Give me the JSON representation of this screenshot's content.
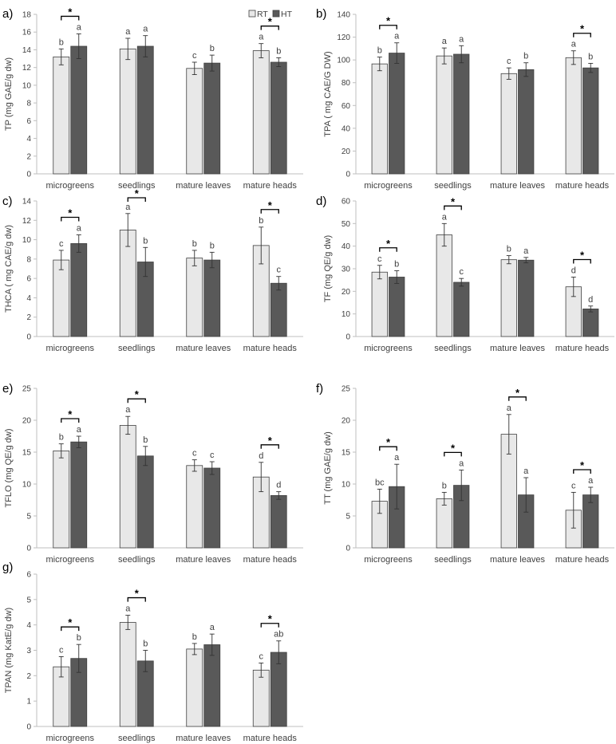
{
  "colors": {
    "RT": "#e8e8e8",
    "HT": "#595959",
    "axis": "#bfbfbf",
    "text": "#404040"
  },
  "legend": {
    "RT": "RT",
    "HT": "HT"
  },
  "chart_data": [
    {
      "type": "bar",
      "panel": "a)",
      "ylabel": "TP (mg GAE/g dw)",
      "ylim": [
        0,
        18
      ],
      "yticks": [
        0,
        2,
        4,
        6,
        8,
        10,
        12,
        14,
        16,
        18
      ],
      "categories": [
        "microgreens",
        "seedlings",
        "mature leaves",
        "mature heads"
      ],
      "series": [
        {
          "name": "RT",
          "values": [
            13.2,
            14.1,
            11.9,
            13.9
          ],
          "errors": [
            0.9,
            1.2,
            0.7,
            0.8
          ],
          "letters": [
            "b",
            "a",
            "c",
            "a"
          ]
        },
        {
          "name": "HT",
          "values": [
            14.4,
            14.4,
            12.5,
            12.6
          ],
          "errors": [
            1.4,
            1.2,
            0.9,
            0.5
          ],
          "letters": [
            "a",
            "a",
            "b",
            "b"
          ]
        }
      ],
      "significance": [
        true,
        false,
        false,
        true
      ]
    },
    {
      "type": "bar",
      "panel": "b)",
      "ylabel": "TPA ( mg CAE/G DW)",
      "ylim": [
        0,
        140
      ],
      "yticks": [
        0,
        20,
        40,
        60,
        80,
        100,
        120,
        140
      ],
      "categories": [
        "microgreens",
        "seedlings",
        "mature leaves",
        "mature heads"
      ],
      "series": [
        {
          "name": "RT",
          "values": [
            96.5,
            103.5,
            88,
            102
          ],
          "errors": [
            6,
            7,
            5,
            6
          ],
          "letters": [
            "b",
            "a",
            "c",
            "a"
          ]
        },
        {
          "name": "HT",
          "values": [
            106,
            105,
            91.5,
            93
          ],
          "errors": [
            9,
            7.5,
            6,
            4
          ],
          "letters": [
            "a",
            "a",
            "b",
            "b"
          ]
        }
      ],
      "significance": [
        true,
        false,
        false,
        true
      ]
    },
    {
      "type": "bar",
      "panel": "c)",
      "ylabel": "THCA ( mg CAE/g dw)",
      "ylim": [
        0,
        14
      ],
      "yticks": [
        0,
        2,
        4,
        6,
        8,
        10,
        12,
        14
      ],
      "categories": [
        "microgreens",
        "seedlings",
        "mature leaves",
        "mature heads"
      ],
      "series": [
        {
          "name": "RT",
          "values": [
            7.9,
            11.0,
            8.1,
            9.4
          ],
          "errors": [
            1.0,
            1.7,
            0.8,
            1.9
          ],
          "letters": [
            "c",
            "a",
            "b",
            "b"
          ]
        },
        {
          "name": "HT",
          "values": [
            9.6,
            7.7,
            7.9,
            5.5
          ],
          "errors": [
            0.9,
            1.5,
            0.8,
            0.7
          ],
          "letters": [
            "a",
            "b",
            "b",
            "c"
          ]
        }
      ],
      "significance": [
        true,
        true,
        false,
        true
      ]
    },
    {
      "type": "bar",
      "panel": "d)",
      "ylabel": "TF (mg QE/g dw)",
      "ylim": [
        0,
        60
      ],
      "yticks": [
        0,
        10,
        20,
        30,
        40,
        50,
        60
      ],
      "categories": [
        "microgreens",
        "seedlings",
        "mature leaves",
        "mature heads"
      ],
      "series": [
        {
          "name": "RT",
          "values": [
            28.5,
            45.0,
            34.0,
            22.0
          ],
          "errors": [
            3.0,
            5.0,
            1.8,
            4.3
          ],
          "letters": [
            "c",
            "a",
            "b",
            "d"
          ]
        },
        {
          "name": "HT",
          "values": [
            26.3,
            24.0,
            33.8,
            12.2
          ],
          "errors": [
            2.8,
            1.7,
            1.2,
            1.3
          ],
          "letters": [
            "b",
            "c",
            "a",
            "d"
          ]
        }
      ],
      "significance": [
        true,
        true,
        false,
        true
      ]
    },
    {
      "type": "bar",
      "panel": "e)",
      "ylabel": "TFLO (mg QE/g dw)",
      "ylim": [
        0,
        25
      ],
      "yticks": [
        0,
        5,
        10,
        15,
        20,
        25
      ],
      "categories": [
        "microgreens",
        "seedlings",
        "mature leaves",
        "mature heads"
      ],
      "series": [
        {
          "name": "RT",
          "values": [
            15.2,
            19.2,
            12.9,
            11.1
          ],
          "errors": [
            1.1,
            1.4,
            0.9,
            2.3
          ],
          "letters": [
            "b",
            "a",
            "c",
            "d"
          ]
        },
        {
          "name": "HT",
          "values": [
            16.6,
            14.4,
            12.5,
            8.2
          ],
          "errors": [
            0.9,
            1.5,
            1.0,
            0.6
          ],
          "letters": [
            "a",
            "b",
            "c",
            "d"
          ]
        }
      ],
      "significance": [
        true,
        true,
        false,
        true
      ]
    },
    {
      "type": "bar",
      "panel": "f)",
      "ylabel": "TT (mg GAE/g dw)",
      "ylim": [
        0,
        25
      ],
      "yticks": [
        0,
        5,
        10,
        15,
        20,
        25
      ],
      "categories": [
        "microgreens",
        "seedlings",
        "mature leaves",
        "mature heads"
      ],
      "series": [
        {
          "name": "RT",
          "values": [
            7.3,
            7.7,
            17.8,
            5.9
          ],
          "errors": [
            1.9,
            1.0,
            3.1,
            2.8
          ],
          "letters": [
            "bc",
            "b",
            "a",
            "c"
          ]
        },
        {
          "name": "HT",
          "values": [
            9.6,
            9.8,
            8.3,
            8.3
          ],
          "errors": [
            3.5,
            2.4,
            2.7,
            1.2
          ],
          "letters": [
            "a",
            "a",
            "a",
            "a"
          ]
        }
      ],
      "significance": [
        true,
        true,
        true,
        true
      ]
    },
    {
      "type": "bar",
      "panel": "g)",
      "ylabel": "TPAN (mg KatE/g dw)",
      "ylim": [
        0,
        6
      ],
      "yticks": [
        0,
        1,
        2,
        3,
        4,
        5,
        6
      ],
      "categories": [
        "microgreens",
        "seedlings",
        "mature leaves",
        "mature heads"
      ],
      "series": [
        {
          "name": "RT",
          "values": [
            2.35,
            4.1,
            3.05,
            2.22
          ],
          "errors": [
            0.4,
            0.28,
            0.22,
            0.28
          ],
          "letters": [
            "c",
            "a",
            "b",
            "c"
          ]
        },
        {
          "name": "HT",
          "values": [
            2.68,
            2.58,
            3.22,
            2.92
          ],
          "errors": [
            0.55,
            0.42,
            0.42,
            0.45
          ],
          "letters": [
            "b",
            "b",
            "a",
            "ab"
          ]
        }
      ],
      "significance": [
        true,
        true,
        false,
        true
      ]
    }
  ]
}
